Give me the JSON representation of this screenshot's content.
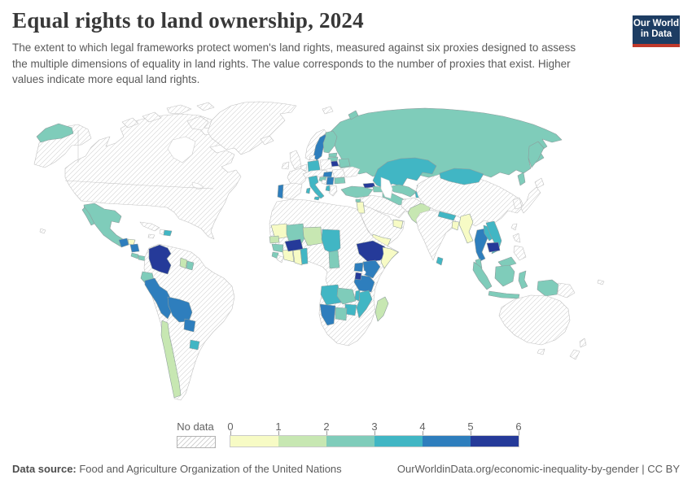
{
  "header": {
    "title": "Equal rights to land ownership, 2024",
    "subtitle": "The extent to which legal frameworks protect women's land rights, measured against six proxies designed to assess the multiple dimensions of equality in land rights. The value corresponds to the number of proxies that exist. Higher values indicate more equal land rights.",
    "logo": {
      "line1": "Our World",
      "line2": "in Data",
      "bg_color": "#1d3d63",
      "accent_color": "#c0392b"
    }
  },
  "legend": {
    "no_data_label": "No data",
    "tick_labels": [
      "0",
      "1",
      "2",
      "3",
      "4",
      "5",
      "6"
    ],
    "bin_colors": [
      "#f7fbc5",
      "#c7e7b2",
      "#7fccba",
      "#41b6c4",
      "#2e7ebd",
      "#253a99"
    ],
    "no_data_pattern": "diagonal-hatch",
    "hatch_line_color": "#d2d2d2"
  },
  "footer": {
    "source_label": "Data source:",
    "source_text": " Food and Agriculture Organization of the United Nations",
    "attribution": "OurWorldinData.org/economic-inequality-by-gender | CC BY"
  },
  "chart_data": {
    "type": "choropleth_map",
    "title": "Equal rights to land ownership",
    "year": 2024,
    "unit": "number of proxies for equal land rights that exist (0–6)",
    "bins": [
      0,
      1,
      2,
      3,
      4,
      5,
      6
    ],
    "no_data_style": "diagonal-hatch",
    "values": {
      "Mexico": 3,
      "Guatemala": 5,
      "Honduras": 1,
      "Nicaragua": 5,
      "Costa Rica": 3,
      "Panama": 3,
      "Dominican Republic": 4,
      "Colombia": 6,
      "Ecuador": 3,
      "Peru": 5,
      "Bolivia": 5,
      "Paraguay": 5,
      "Uruguay": 4,
      "Chile": 2,
      "Guyana": 2,
      "Suriname": 3,
      "Sweden": 5,
      "Finland": 3,
      "Estonia": 3,
      "Latvia": 3,
      "Lithuania": 6,
      "Belarus": 3,
      "Germany": 4,
      "Portugal": 5,
      "Italy": 4,
      "Hungary": 5,
      "Croatia": 3,
      "Serbia": 5,
      "Albania": 4,
      "Bulgaria": 3,
      "Russia": 3,
      "Turkey": 3,
      "Georgia": 6,
      "Azerbaijan": 3,
      "Kazakhstan": 4,
      "Uzbekistan": 3,
      "Turkmenistan": 3,
      "Kyrgyzstan": 3,
      "Tajikistan": 4,
      "Afghanistan-none": 0,
      "Pakistan": 2,
      "Nepal": 4,
      "Bangladesh": 1,
      "Sri Lanka": 4,
      "Myanmar": 1,
      "Thailand": 5,
      "Laos": 4,
      "Vietnam": 4,
      "Cambodia": 6,
      "Malaysia": 3,
      "Indonesia": 3,
      "Mongolia": 4,
      "Lebanon": 3,
      "Jordan": 1,
      "United Arab Emirates": 1,
      "Yemen": 1,
      "Mauritania": 1,
      "Mali": 3,
      "Niger": 2,
      "Chad": 4,
      "Senegal": 2,
      "Guinea": 3,
      "Sierra Leone": 3,
      "Côte d'Ivoire": 1,
      "Ghana": 1,
      "Benin": 4,
      "Burkina Faso": 6,
      "Cameroon": 3,
      "Ethiopia": 6,
      "Somalia": 1,
      "Kenya": 5,
      "Uganda": 5,
      "Tanzania": 5,
      "Rwanda": 6,
      "Angola": 4,
      "Zambia": 3,
      "Malawi": 4,
      "Mozambique": 4,
      "Zimbabwe": 4,
      "Botswana": 3,
      "Namibia": 5,
      "Madagascar": 2
    },
    "no_data": [
      "United States",
      "Canada",
      "Greenland",
      "Iceland",
      "Cuba",
      "Haiti",
      "Jamaica",
      "Brazil",
      "Argentina",
      "Venezuela",
      "French Guiana",
      "United Kingdom",
      "Ireland",
      "Norway",
      "Denmark",
      "France",
      "Spain",
      "Poland",
      "Czechia",
      "Austria",
      "Switzerland",
      "Ukraine",
      "Romania",
      "Greece",
      "Bosnia and Herzegovina",
      "Morocco",
      "Algeria",
      "Libya",
      "Egypt",
      "Sudan",
      "South Sudan",
      "Nigeria",
      "Liberia",
      "Democratic Republic of Congo",
      "South Africa",
      "Saudi Arabia",
      "Iraq",
      "Iran",
      "Syria",
      "Oman",
      "Afghanistan",
      "India",
      "China",
      "Japan",
      "South Korea",
      "Taiwan",
      "Philippines",
      "Papua New Guinea",
      "Australia",
      "New Zealand"
    ]
  }
}
